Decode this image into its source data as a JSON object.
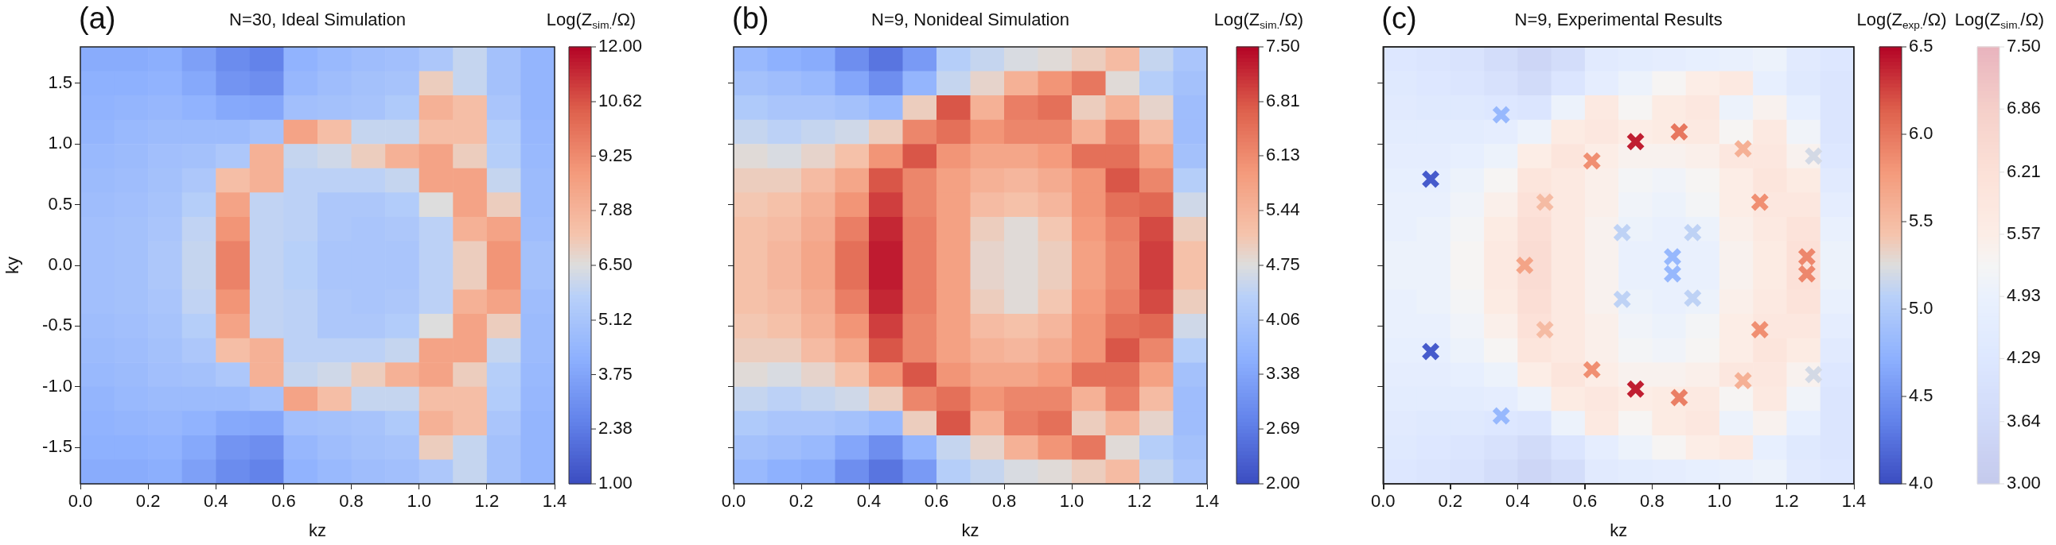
{
  "chart_data": [
    {
      "type": "heatmap",
      "title": "N=30, Ideal Simulation",
      "xlabel": "kz",
      "ylabel": "ky",
      "clabel": "Log(Z$_{sim.}$/Ω)",
      "annotations": [
        "(a)"
      ],
      "xlim": [
        0,
        1.4
      ],
      "ylim": [
        -1.8,
        1.8
      ],
      "xticks": [
        {
          "value": 0,
          "label": "0.0"
        },
        {
          "value": 0.2,
          "label": "0.2"
        },
        {
          "value": 0.4,
          "label": "0.4"
        },
        {
          "value": 0.6,
          "label": "0.6"
        },
        {
          "value": 0.8,
          "label": "0.8"
        },
        {
          "value": 1,
          "label": "1.0"
        },
        {
          "value": 1.2,
          "label": "1.2"
        },
        {
          "value": 1.4,
          "label": "1.4"
        }
      ],
      "yticks": [
        {
          "value": -1.5,
          "label": "-1.5"
        },
        {
          "value": -1,
          "label": "-1.0"
        },
        {
          "value": -0.5,
          "label": "-0.5"
        },
        {
          "value": 0,
          "label": "0.0"
        },
        {
          "value": 0.5,
          "label": "0.5"
        },
        {
          "value": 1,
          "label": "1.0"
        },
        {
          "value": 1.5,
          "label": "1.5"
        }
      ],
      "clim": [
        1,
        12
      ],
      "cticks": [
        {
          "value": 1,
          "label": "1.00"
        },
        {
          "value": 2.38,
          "label": "2.38"
        },
        {
          "value": 3.75,
          "label": "3.75"
        },
        {
          "value": 5.12,
          "label": "5.12"
        },
        {
          "value": 6.5,
          "label": "6.50"
        },
        {
          "value": 7.88,
          "label": "7.88"
        },
        {
          "value": 9.25,
          "label": "9.25"
        },
        {
          "value": 10.62,
          "label": "10.62"
        },
        {
          "value": 12,
          "label": "12.00"
        }
      ],
      "cells": [
        [
          4.0,
          4.0,
          4.1,
          3.6,
          2.9,
          2.6,
          4.3,
          4.6,
          4.8,
          4.9,
          5.3,
          6.0,
          5.0,
          4.4
        ],
        [
          4.2,
          4.2,
          4.3,
          3.9,
          3.2,
          3.0,
          4.5,
          4.8,
          5.0,
          5.1,
          7.0,
          6.0,
          5.0,
          4.4
        ],
        [
          4.3,
          4.4,
          4.5,
          4.3,
          3.9,
          3.8,
          4.9,
          5.0,
          5.1,
          5.4,
          8.0,
          7.5,
          5.2,
          4.4
        ],
        [
          4.4,
          4.6,
          4.7,
          4.7,
          4.7,
          5.0,
          8.5,
          7.5,
          6.0,
          6.0,
          7.5,
          7.5,
          5.5,
          4.5
        ],
        [
          4.6,
          4.7,
          4.9,
          5.0,
          5.3,
          8.0,
          6.0,
          6.2,
          7.0,
          8.0,
          8.5,
          7.0,
          5.6,
          4.6
        ],
        [
          4.7,
          4.8,
          5.0,
          5.3,
          7.5,
          8.0,
          5.8,
          5.8,
          5.8,
          6.0,
          8.5,
          8.5,
          6.0,
          4.7
        ],
        [
          4.8,
          4.9,
          5.1,
          5.6,
          8.5,
          5.9,
          5.8,
          5.3,
          5.3,
          5.5,
          6.5,
          8.5,
          7.0,
          4.7
        ],
        [
          4.9,
          5.0,
          5.2,
          5.9,
          9.0,
          5.9,
          5.8,
          5.3,
          5.2,
          5.3,
          5.8,
          8.0,
          8.5,
          4.8
        ],
        [
          4.9,
          5.0,
          5.3,
          6.0,
          9.5,
          5.9,
          5.7,
          5.2,
          5.2,
          5.2,
          5.8,
          7.0,
          9.0,
          5.0
        ],
        [
          4.9,
          5.0,
          5.3,
          6.0,
          9.5,
          5.9,
          5.7,
          5.2,
          5.2,
          5.2,
          5.8,
          7.0,
          9.0,
          5.0
        ],
        [
          4.9,
          5.0,
          5.2,
          5.9,
          9.0,
          5.9,
          5.8,
          5.3,
          5.2,
          5.3,
          5.8,
          8.0,
          8.5,
          4.8
        ],
        [
          4.8,
          4.9,
          5.1,
          5.6,
          8.5,
          5.9,
          5.8,
          5.3,
          5.3,
          5.5,
          6.5,
          8.5,
          7.0,
          4.7
        ],
        [
          4.7,
          4.8,
          5.0,
          5.3,
          7.5,
          8.0,
          5.8,
          5.8,
          5.8,
          6.0,
          8.5,
          8.5,
          6.0,
          4.7
        ],
        [
          4.6,
          4.7,
          4.9,
          5.0,
          5.3,
          8.0,
          6.0,
          6.2,
          7.0,
          8.0,
          8.5,
          7.0,
          5.6,
          4.6
        ],
        [
          4.4,
          4.6,
          4.7,
          4.7,
          4.7,
          5.0,
          8.5,
          7.5,
          6.0,
          6.0,
          7.5,
          7.5,
          5.5,
          4.5
        ],
        [
          4.3,
          4.4,
          4.5,
          4.3,
          3.9,
          3.8,
          4.9,
          5.0,
          5.1,
          5.4,
          8.0,
          7.5,
          5.2,
          4.4
        ],
        [
          4.2,
          4.2,
          4.3,
          3.9,
          3.2,
          3.0,
          4.5,
          4.8,
          5.0,
          5.1,
          7.0,
          6.0,
          5.0,
          4.4
        ],
        [
          4.0,
          4.0,
          4.1,
          3.6,
          2.9,
          2.6,
          4.3,
          4.6,
          4.8,
          4.9,
          5.3,
          6.0,
          5.0,
          4.4
        ]
      ]
    },
    {
      "type": "heatmap",
      "title": "N=9, Nonideal Simulation",
      "xlabel": "kz",
      "clabel": "Log(Z$_{sim.}$/Ω)",
      "annotations": [
        "(b)"
      ],
      "tick_labels": "x",
      "xlim": [
        0,
        1.4
      ],
      "ylim": [
        -1.8,
        1.8
      ],
      "xticks": [
        {
          "value": 0,
          "label": "0.0"
        },
        {
          "value": 0.2,
          "label": "0.2"
        },
        {
          "value": 0.4,
          "label": "0.4"
        },
        {
          "value": 0.6,
          "label": "0.6"
        },
        {
          "value": 0.8,
          "label": "0.8"
        },
        {
          "value": 1,
          "label": "1.0"
        },
        {
          "value": 1.2,
          "label": "1.2"
        },
        {
          "value": 1.4,
          "label": "1.4"
        }
      ],
      "yticks": [
        {
          "value": -1.5,
          "label": null
        },
        {
          "value": -1,
          "label": null
        },
        {
          "value": -0.5,
          "label": null
        },
        {
          "value": 0,
          "label": null
        },
        {
          "value": 0.5,
          "label": null
        },
        {
          "value": 1,
          "label": null
        },
        {
          "value": 1.5,
          "label": null
        }
      ],
      "clim": [
        2,
        7.5
      ],
      "cticks": [
        {
          "value": 2,
          "label": "2.00"
        },
        {
          "value": 2.69,
          "label": "2.69"
        },
        {
          "value": 3.38,
          "label": "3.38"
        },
        {
          "value": 4.06,
          "label": "4.06"
        },
        {
          "value": 4.75,
          "label": "4.75"
        },
        {
          "value": 5.44,
          "label": "5.44"
        },
        {
          "value": 6.13,
          "label": "6.13"
        },
        {
          "value": 6.81,
          "label": "6.81"
        },
        {
          "value": 7.5,
          "label": "7.50"
        }
      ],
      "cells": [
        [
          3.8,
          3.6,
          3.5,
          3.0,
          2.6,
          3.2,
          4.3,
          4.5,
          4.7,
          4.8,
          5.0,
          5.3,
          4.5,
          4.1
        ],
        [
          4.0,
          3.9,
          3.8,
          3.4,
          3.0,
          3.7,
          4.5,
          4.9,
          5.5,
          6.0,
          6.4,
          4.8,
          4.3,
          4.0
        ],
        [
          4.2,
          4.1,
          4.1,
          4.0,
          3.8,
          5.0,
          6.8,
          5.5,
          6.3,
          6.5,
          5.0,
          5.5,
          4.9,
          3.9
        ],
        [
          4.5,
          4.4,
          4.5,
          4.6,
          5.0,
          6.2,
          6.5,
          6.0,
          6.2,
          6.2,
          5.5,
          6.3,
          5.3,
          3.9
        ],
        [
          4.8,
          4.7,
          4.9,
          5.2,
          6.0,
          6.8,
          6.0,
          5.7,
          5.7,
          5.9,
          6.5,
          6.5,
          5.8,
          4.0
        ],
        [
          5.0,
          5.0,
          5.3,
          5.7,
          6.8,
          6.2,
          5.8,
          5.5,
          5.4,
          5.6,
          6.0,
          6.8,
          6.2,
          4.3
        ],
        [
          5.1,
          5.2,
          5.5,
          6.0,
          7.0,
          6.2,
          5.8,
          5.3,
          5.2,
          5.4,
          6.0,
          6.5,
          6.6,
          4.6
        ],
        [
          5.2,
          5.3,
          5.6,
          6.3,
          7.2,
          6.3,
          5.8,
          5.0,
          4.8,
          5.1,
          5.9,
          6.3,
          6.9,
          5.0
        ],
        [
          5.2,
          5.4,
          5.7,
          6.5,
          7.3,
          6.3,
          5.8,
          4.9,
          4.8,
          5.0,
          5.8,
          6.2,
          7.0,
          5.2
        ],
        [
          5.2,
          5.4,
          5.7,
          6.5,
          7.3,
          6.3,
          5.8,
          4.9,
          4.8,
          5.0,
          5.8,
          6.2,
          7.0,
          5.2
        ],
        [
          5.2,
          5.3,
          5.6,
          6.3,
          7.2,
          6.3,
          5.8,
          5.0,
          4.8,
          5.1,
          5.9,
          6.3,
          6.9,
          5.0
        ],
        [
          5.1,
          5.2,
          5.5,
          6.0,
          7.0,
          6.2,
          5.8,
          5.3,
          5.2,
          5.4,
          6.0,
          6.5,
          6.6,
          4.6
        ],
        [
          5.0,
          5.0,
          5.3,
          5.7,
          6.8,
          6.2,
          5.8,
          5.5,
          5.4,
          5.6,
          6.0,
          6.8,
          6.2,
          4.3
        ],
        [
          4.8,
          4.7,
          4.9,
          5.2,
          6.0,
          6.8,
          6.0,
          5.7,
          5.7,
          5.9,
          6.5,
          6.5,
          5.8,
          4.0
        ],
        [
          4.5,
          4.4,
          4.5,
          4.6,
          5.0,
          6.2,
          6.5,
          6.0,
          6.2,
          6.2,
          5.5,
          6.3,
          5.3,
          3.9
        ],
        [
          4.2,
          4.1,
          4.1,
          4.0,
          3.8,
          5.0,
          6.8,
          5.5,
          6.3,
          6.5,
          5.0,
          5.5,
          4.9,
          3.9
        ],
        [
          4.0,
          3.9,
          3.8,
          3.4,
          3.0,
          3.7,
          4.5,
          4.9,
          5.5,
          6.0,
          6.4,
          4.8,
          4.3,
          4.0
        ],
        [
          3.8,
          3.6,
          3.5,
          3.0,
          2.6,
          3.2,
          4.3,
          4.5,
          4.7,
          4.8,
          5.0,
          5.3,
          4.5,
          4.1
        ]
      ]
    },
    {
      "type": "heatmap",
      "title": "N=9, Experimental Results",
      "xlabel": "kz",
      "clabel": "Log(Z$_{sim.}$/Ω)",
      "annotations": [
        "(c)"
      ],
      "tick_labels": "x",
      "xlim": [
        0,
        1.4
      ],
      "ylim": [
        -1.8,
        1.8
      ],
      "xticks": [
        {
          "value": 0,
          "label": "0.0"
        },
        {
          "value": 0.2,
          "label": "0.2"
        },
        {
          "value": 0.4,
          "label": "0.4"
        },
        {
          "value": 0.6,
          "label": "0.6"
        },
        {
          "value": 0.8,
          "label": "0.8"
        },
        {
          "value": 1,
          "label": "1.0"
        },
        {
          "value": 1.2,
          "label": "1.2"
        },
        {
          "value": 1.4,
          "label": "1.4"
        }
      ],
      "yticks": [
        {
          "value": -1.5,
          "label": null
        },
        {
          "value": -1,
          "label": null
        },
        {
          "value": -0.5,
          "label": null
        },
        {
          "value": 0,
          "label": null
        },
        {
          "value": 0.5,
          "label": null
        },
        {
          "value": 1,
          "label": null
        },
        {
          "value": 1.5,
          "label": null
        }
      ],
      "clim": [
        3,
        7.5
      ],
      "cticks": [
        {
          "value": 3,
          "label": "3.00"
        },
        {
          "value": 3.64,
          "label": "3.64"
        },
        {
          "value": 4.29,
          "label": "4.29"
        },
        {
          "value": 4.93,
          "label": "4.93"
        },
        {
          "value": 5.57,
          "label": "5.57"
        },
        {
          "value": 6.21,
          "label": "6.21"
        },
        {
          "value": 6.86,
          "label": "6.86"
        },
        {
          "value": 7.5,
          "label": "7.50"
        }
      ],
      "cells": [
        [
          4.3,
          4.2,
          4.1,
          3.8,
          3.5,
          3.8,
          4.5,
          4.6,
          4.7,
          4.8,
          4.9,
          5.0,
          4.5,
          4.3
        ],
        [
          4.4,
          4.3,
          4.2,
          4.0,
          3.7,
          4.2,
          4.7,
          5.0,
          5.3,
          5.6,
          5.8,
          4.8,
          4.4,
          4.2
        ],
        [
          4.5,
          4.4,
          4.4,
          4.3,
          4.2,
          5.0,
          5.8,
          5.3,
          5.7,
          5.9,
          5.0,
          5.4,
          4.8,
          4.2
        ],
        [
          4.6,
          4.6,
          4.6,
          4.7,
          5.0,
          5.7,
          5.9,
          5.6,
          5.7,
          5.8,
          5.3,
          5.8,
          5.1,
          4.2
        ],
        [
          4.7,
          4.7,
          4.8,
          5.0,
          5.6,
          6.0,
          5.6,
          5.4,
          5.4,
          5.5,
          5.9,
          5.9,
          5.4,
          4.3
        ],
        [
          4.8,
          4.8,
          5.0,
          5.3,
          6.0,
          5.8,
          5.5,
          5.2,
          5.1,
          5.3,
          5.6,
          6.0,
          5.7,
          4.5
        ],
        [
          4.9,
          4.9,
          5.1,
          5.5,
          6.2,
          5.8,
          5.5,
          5.1,
          5.0,
          5.2,
          5.6,
          5.9,
          5.9,
          4.7
        ],
        [
          4.9,
          5.0,
          5.2,
          5.7,
          6.3,
          5.8,
          5.4,
          5.0,
          4.9,
          5.0,
          5.5,
          5.8,
          6.1,
          4.9
        ],
        [
          5.0,
          5.0,
          5.3,
          5.8,
          6.4,
          5.8,
          5.4,
          4.9,
          4.9,
          4.9,
          5.4,
          5.7,
          6.2,
          5.0
        ],
        [
          5.0,
          5.0,
          5.3,
          5.8,
          6.4,
          5.8,
          5.4,
          4.9,
          4.9,
          4.9,
          5.4,
          5.7,
          6.2,
          5.0
        ],
        [
          4.9,
          5.0,
          5.2,
          5.7,
          6.3,
          5.8,
          5.4,
          5.0,
          4.9,
          5.0,
          5.5,
          5.8,
          6.1,
          4.9
        ],
        [
          4.9,
          4.9,
          5.1,
          5.5,
          6.2,
          5.8,
          5.5,
          5.1,
          5.0,
          5.2,
          5.6,
          5.9,
          5.9,
          4.7
        ],
        [
          4.8,
          4.8,
          5.0,
          5.3,
          6.0,
          5.8,
          5.5,
          5.2,
          5.1,
          5.3,
          5.6,
          6.0,
          5.7,
          4.5
        ],
        [
          4.7,
          4.7,
          4.8,
          5.0,
          5.6,
          6.0,
          5.6,
          5.4,
          5.4,
          5.5,
          5.9,
          5.9,
          5.4,
          4.3
        ],
        [
          4.6,
          4.6,
          4.6,
          4.7,
          5.0,
          5.7,
          5.9,
          5.6,
          5.7,
          5.8,
          5.3,
          5.8,
          5.1,
          4.2
        ],
        [
          4.5,
          4.4,
          4.4,
          4.3,
          4.2,
          5.0,
          5.8,
          5.3,
          5.7,
          5.9,
          5.0,
          5.4,
          4.8,
          4.2
        ],
        [
          4.4,
          4.3,
          4.2,
          4.0,
          3.7,
          4.2,
          4.7,
          5.0,
          5.3,
          5.6,
          5.8,
          4.8,
          4.4,
          4.2
        ],
        [
          4.3,
          4.2,
          4.1,
          3.8,
          3.5,
          3.8,
          4.5,
          4.6,
          4.7,
          4.8,
          4.9,
          5.0,
          4.5,
          4.3
        ]
      ]
    },
    {
      "type": "scatter",
      "clabel": "Log(Z$_{exp.}$/Ω)",
      "clim": [
        4,
        6.5
      ],
      "tick_labels": false,
      "marker": "cross",
      "xlim": [
        0,
        1.4
      ],
      "ylim": [
        -1.8,
        1.8
      ],
      "xticks": [
        {
          "value": 0,
          "label": null
        },
        {
          "value": 0.2,
          "label": null
        },
        {
          "value": 0.4,
          "label": null
        },
        {
          "value": 0.6,
          "label": null
        },
        {
          "value": 0.8,
          "label": null
        },
        {
          "value": 1,
          "label": null
        },
        {
          "value": 1.2,
          "label": null
        },
        {
          "value": 1.4,
          "label": null
        }
      ],
      "yticks": [
        {
          "value": -1.5,
          "label": null
        },
        {
          "value": -1,
          "label": null
        },
        {
          "value": -0.5,
          "label": null
        },
        {
          "value": 0,
          "label": null
        },
        {
          "value": 0.5,
          "label": null
        },
        {
          "value": 1,
          "label": null
        },
        {
          "value": 1.5,
          "label": null
        }
      ],
      "cticks": [
        {
          "value": 4,
          "label": "4.0"
        },
        {
          "value": 4.5,
          "label": "4.5"
        },
        {
          "value": 5,
          "label": "5.0"
        },
        {
          "value": 5.5,
          "label": "5.5"
        },
        {
          "value": 6,
          "label": "6.0"
        },
        {
          "value": 6.5,
          "label": "6.5"
        }
      ],
      "x": [
        0.14,
        0.14,
        0.35,
        0.35,
        0.42,
        0.48,
        0.48,
        0.62,
        0.62,
        0.75,
        0.75,
        0.88,
        0.88,
        0.71,
        0.71,
        0.92,
        0.92,
        0.86,
        0.86,
        1.07,
        1.07,
        1.12,
        1.12,
        1.26,
        1.26,
        1.28,
        1.28
      ],
      "values": [
        0.71,
        -0.71,
        1.24,
        -1.24,
        0.0,
        0.52,
        -0.53,
        0.86,
        -0.86,
        1.02,
        -1.02,
        1.1,
        -1.09,
        0.27,
        -0.28,
        0.27,
        -0.27,
        0.07,
        -0.07,
        0.96,
        -0.95,
        0.52,
        -0.53,
        0.07,
        -0.07,
        0.9,
        -0.9
      ],
      "cvalues": [
        4.1,
        4.1,
        4.8,
        4.8,
        5.7,
        5.5,
        5.5,
        5.85,
        5.85,
        6.4,
        6.4,
        6.0,
        5.95,
        5.1,
        5.1,
        5.1,
        5.1,
        4.8,
        4.8,
        5.6,
        5.6,
        5.85,
        5.85,
        5.9,
        5.9,
        5.2,
        5.2
      ]
    }
  ]
}
